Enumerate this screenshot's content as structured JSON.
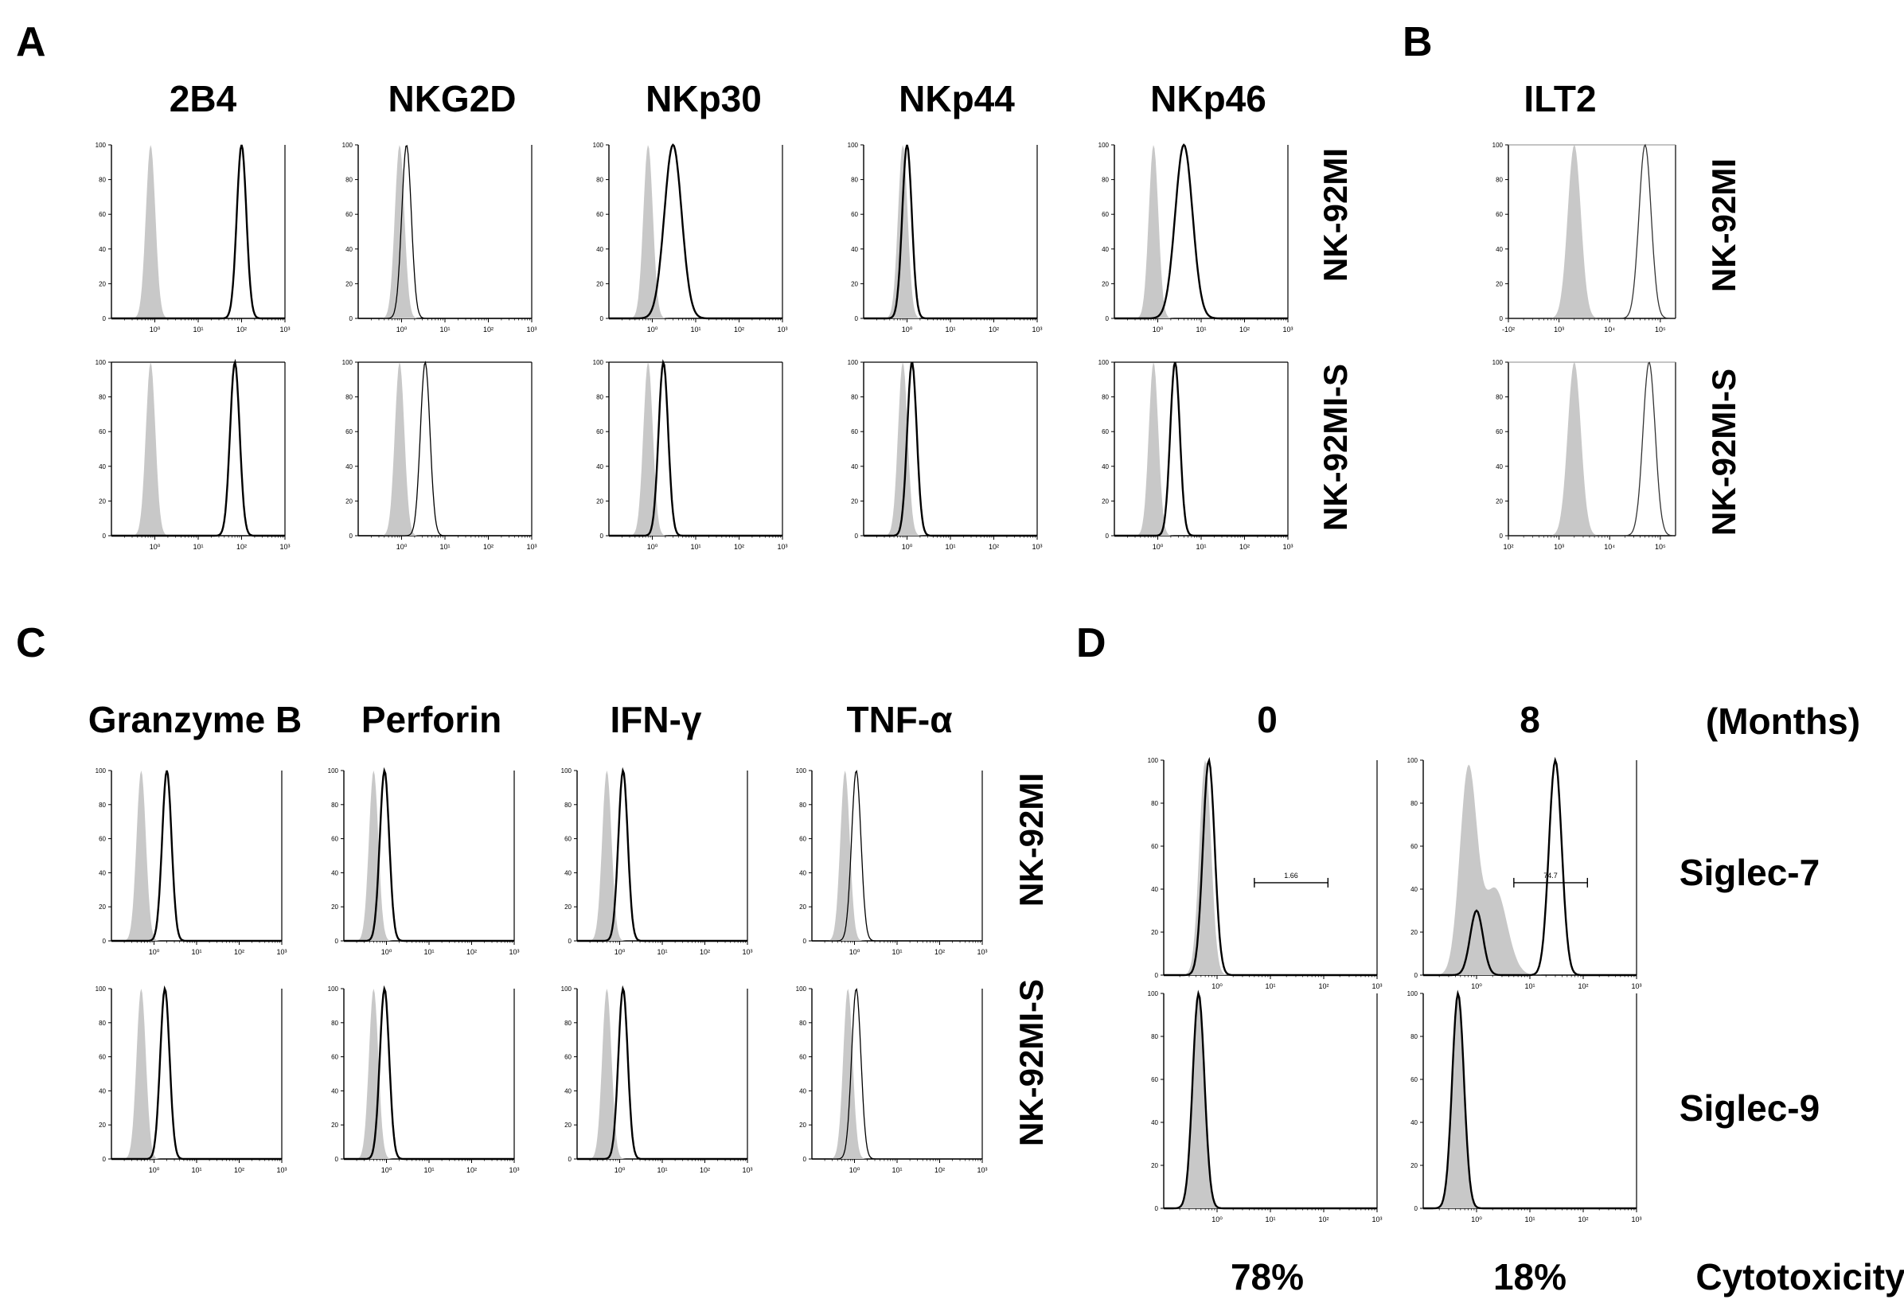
{
  "panels": {
    "A": {
      "letter": "A",
      "markers": [
        "2B4",
        "NKG2D",
        "NKp30",
        "NKp44",
        "NKp46"
      ],
      "rows": [
        "NK-92MI",
        "NK-92MI-S"
      ]
    },
    "B": {
      "letter": "B",
      "markers": [
        "ILT2"
      ],
      "rows": [
        "NK-92MI",
        "NK-92MI-S"
      ]
    },
    "C": {
      "letter": "C",
      "markers": [
        "Granzyme B",
        "Perforin",
        "IFN-γ",
        "TNF-α"
      ],
      "rows": [
        "NK-92MI",
        "NK-92MI-S"
      ]
    },
    "D": {
      "letter": "D",
      "time_label": "(Months)",
      "times": [
        "0",
        "8"
      ],
      "rows": [
        "Siglec-7",
        "Siglec-9"
      ],
      "gates": [
        "1.66",
        "74.7"
      ],
      "cytotoxicity": [
        "78%",
        "18%"
      ],
      "cytotoxicity_label": "Cytotoxicity"
    }
  },
  "axis": {
    "y_ticks": [
      "100",
      "80",
      "60",
      "40",
      "20",
      "0"
    ],
    "x_ticks_log": [
      "10⁰",
      "10¹",
      "10²",
      "10³"
    ],
    "x_ticks_B": [
      "10²",
      "10³",
      "10⁴",
      "10⁵"
    ],
    "x_ticks_B_top": [
      "-10²",
      "10³",
      "10⁴",
      "10⁵"
    ]
  },
  "chart_data": {
    "type": "area",
    "description_of_series": [
      "isotype control (filled grey)",
      "stained (black outline)"
    ],
    "ylim": [
      0,
      100
    ],
    "panels": [
      {
        "panel": "A",
        "marker": "2B4",
        "cell": "NK-92MI",
        "x_scale": "log",
        "xlim": [
          0.1,
          1000
        ],
        "isotype_peak": 0.8,
        "stained_peak": 100
      },
      {
        "panel": "A",
        "marker": "NKG2D",
        "cell": "NK-92MI",
        "x_scale": "log",
        "xlim": [
          0.1,
          1000
        ],
        "isotype_peak": 0.9,
        "stained_peak": 1.3
      },
      {
        "panel": "A",
        "marker": "NKp30",
        "cell": "NK-92MI",
        "x_scale": "log",
        "xlim": [
          0.1,
          1000
        ],
        "isotype_peak": 0.8,
        "stained_peak": 3
      },
      {
        "panel": "A",
        "marker": "NKp44",
        "cell": "NK-92MI",
        "x_scale": "log",
        "xlim": [
          0.1,
          1000
        ],
        "isotype_peak": 0.8,
        "stained_peak": 1
      },
      {
        "panel": "A",
        "marker": "NKp46",
        "cell": "NK-92MI",
        "x_scale": "log",
        "xlim": [
          0.1,
          1000
        ],
        "isotype_peak": 0.8,
        "stained_peak": 4
      },
      {
        "panel": "A",
        "marker": "2B4",
        "cell": "NK-92MI-S",
        "x_scale": "log",
        "xlim": [
          0.1,
          1000
        ],
        "isotype_peak": 0.8,
        "stained_peak": 70
      },
      {
        "panel": "A",
        "marker": "NKG2D",
        "cell": "NK-92MI-S",
        "x_scale": "log",
        "xlim": [
          0.1,
          1000
        ],
        "isotype_peak": 0.9,
        "stained_peak": 3.5
      },
      {
        "panel": "A",
        "marker": "NKp30",
        "cell": "NK-92MI-S",
        "x_scale": "log",
        "xlim": [
          0.1,
          1000
        ],
        "isotype_peak": 0.8,
        "stained_peak": 1.8
      },
      {
        "panel": "A",
        "marker": "NKp44",
        "cell": "NK-92MI-S",
        "x_scale": "log",
        "xlim": [
          0.1,
          1000
        ],
        "isotype_peak": 0.8,
        "stained_peak": 1.3
      },
      {
        "panel": "A",
        "marker": "NKp46",
        "cell": "NK-92MI-S",
        "x_scale": "log",
        "xlim": [
          0.1,
          1000
        ],
        "isotype_peak": 0.8,
        "stained_peak": 2.5
      },
      {
        "panel": "B",
        "marker": "ILT2",
        "cell": "NK-92MI",
        "x_scale": "log",
        "xlim": [
          100,
          200000
        ],
        "isotype_peak": 2000,
        "stained_peak": 50000
      },
      {
        "panel": "B",
        "marker": "ILT2",
        "cell": "NK-92MI-S",
        "x_scale": "log",
        "xlim": [
          100,
          200000
        ],
        "isotype_peak": 2000,
        "stained_peak": 60000
      },
      {
        "panel": "C",
        "marker": "Granzyme B",
        "cell": "NK-92MI",
        "x_scale": "log",
        "xlim": [
          0.1,
          1000
        ],
        "isotype_peak": 0.5,
        "stained_peak": 2
      },
      {
        "panel": "C",
        "marker": "Perforin",
        "cell": "NK-92MI",
        "x_scale": "log",
        "xlim": [
          0.1,
          1000
        ],
        "isotype_peak": 0.5,
        "stained_peak": 0.9
      },
      {
        "panel": "C",
        "marker": "IFN-γ",
        "cell": "NK-92MI",
        "x_scale": "log",
        "xlim": [
          0.1,
          1000
        ],
        "isotype_peak": 0.5,
        "stained_peak": 1.2
      },
      {
        "panel": "C",
        "marker": "TNF-α",
        "cell": "NK-92MI",
        "x_scale": "log",
        "xlim": [
          0.1,
          1000
        ],
        "isotype_peak": 0.6,
        "stained_peak": 1.1
      },
      {
        "panel": "C",
        "marker": "Granzyme B",
        "cell": "NK-92MI-S",
        "x_scale": "log",
        "xlim": [
          0.1,
          1000
        ],
        "isotype_peak": 0.5,
        "stained_peak": 1.8
      },
      {
        "panel": "C",
        "marker": "Perforin",
        "cell": "NK-92MI-S",
        "x_scale": "log",
        "xlim": [
          0.1,
          1000
        ],
        "isotype_peak": 0.5,
        "stained_peak": 0.9
      },
      {
        "panel": "C",
        "marker": "IFN-γ",
        "cell": "NK-92MI-S",
        "x_scale": "log",
        "xlim": [
          0.1,
          1000
        ],
        "isotype_peak": 0.5,
        "stained_peak": 1.2
      },
      {
        "panel": "C",
        "marker": "TNF-α",
        "cell": "NK-92MI-S",
        "x_scale": "log",
        "xlim": [
          0.1,
          1000
        ],
        "isotype_peak": 0.7,
        "stained_peak": 1.1
      },
      {
        "panel": "D",
        "marker": "Siglec-7",
        "time": "0",
        "x_scale": "log",
        "xlim": [
          0.1,
          1000
        ],
        "isotype_peak": 0.6,
        "stained_peak": 0.7,
        "gate": [
          5,
          120
        ],
        "gate_value": 1.66
      },
      {
        "panel": "D",
        "marker": "Siglec-7",
        "time": "8",
        "x_scale": "log",
        "xlim": [
          0.1,
          1000
        ],
        "isotype_peak": 0.7,
        "stained_peaks": [
          {
            "x": 1.0,
            "y": 30
          },
          {
            "x": 30,
            "y": 100
          }
        ],
        "gate": [
          5,
          120
        ],
        "gate_value": 74.7
      },
      {
        "panel": "D",
        "marker": "Siglec-9",
        "time": "0",
        "x_scale": "log",
        "xlim": [
          0.1,
          1000
        ],
        "isotype_peak": 0.45,
        "stained_peak": 0.45
      },
      {
        "panel": "D",
        "marker": "Siglec-9",
        "time": "8",
        "x_scale": "log",
        "xlim": [
          0.1,
          1000
        ],
        "isotype_peak": 0.45,
        "stained_peak": 0.45
      }
    ]
  }
}
